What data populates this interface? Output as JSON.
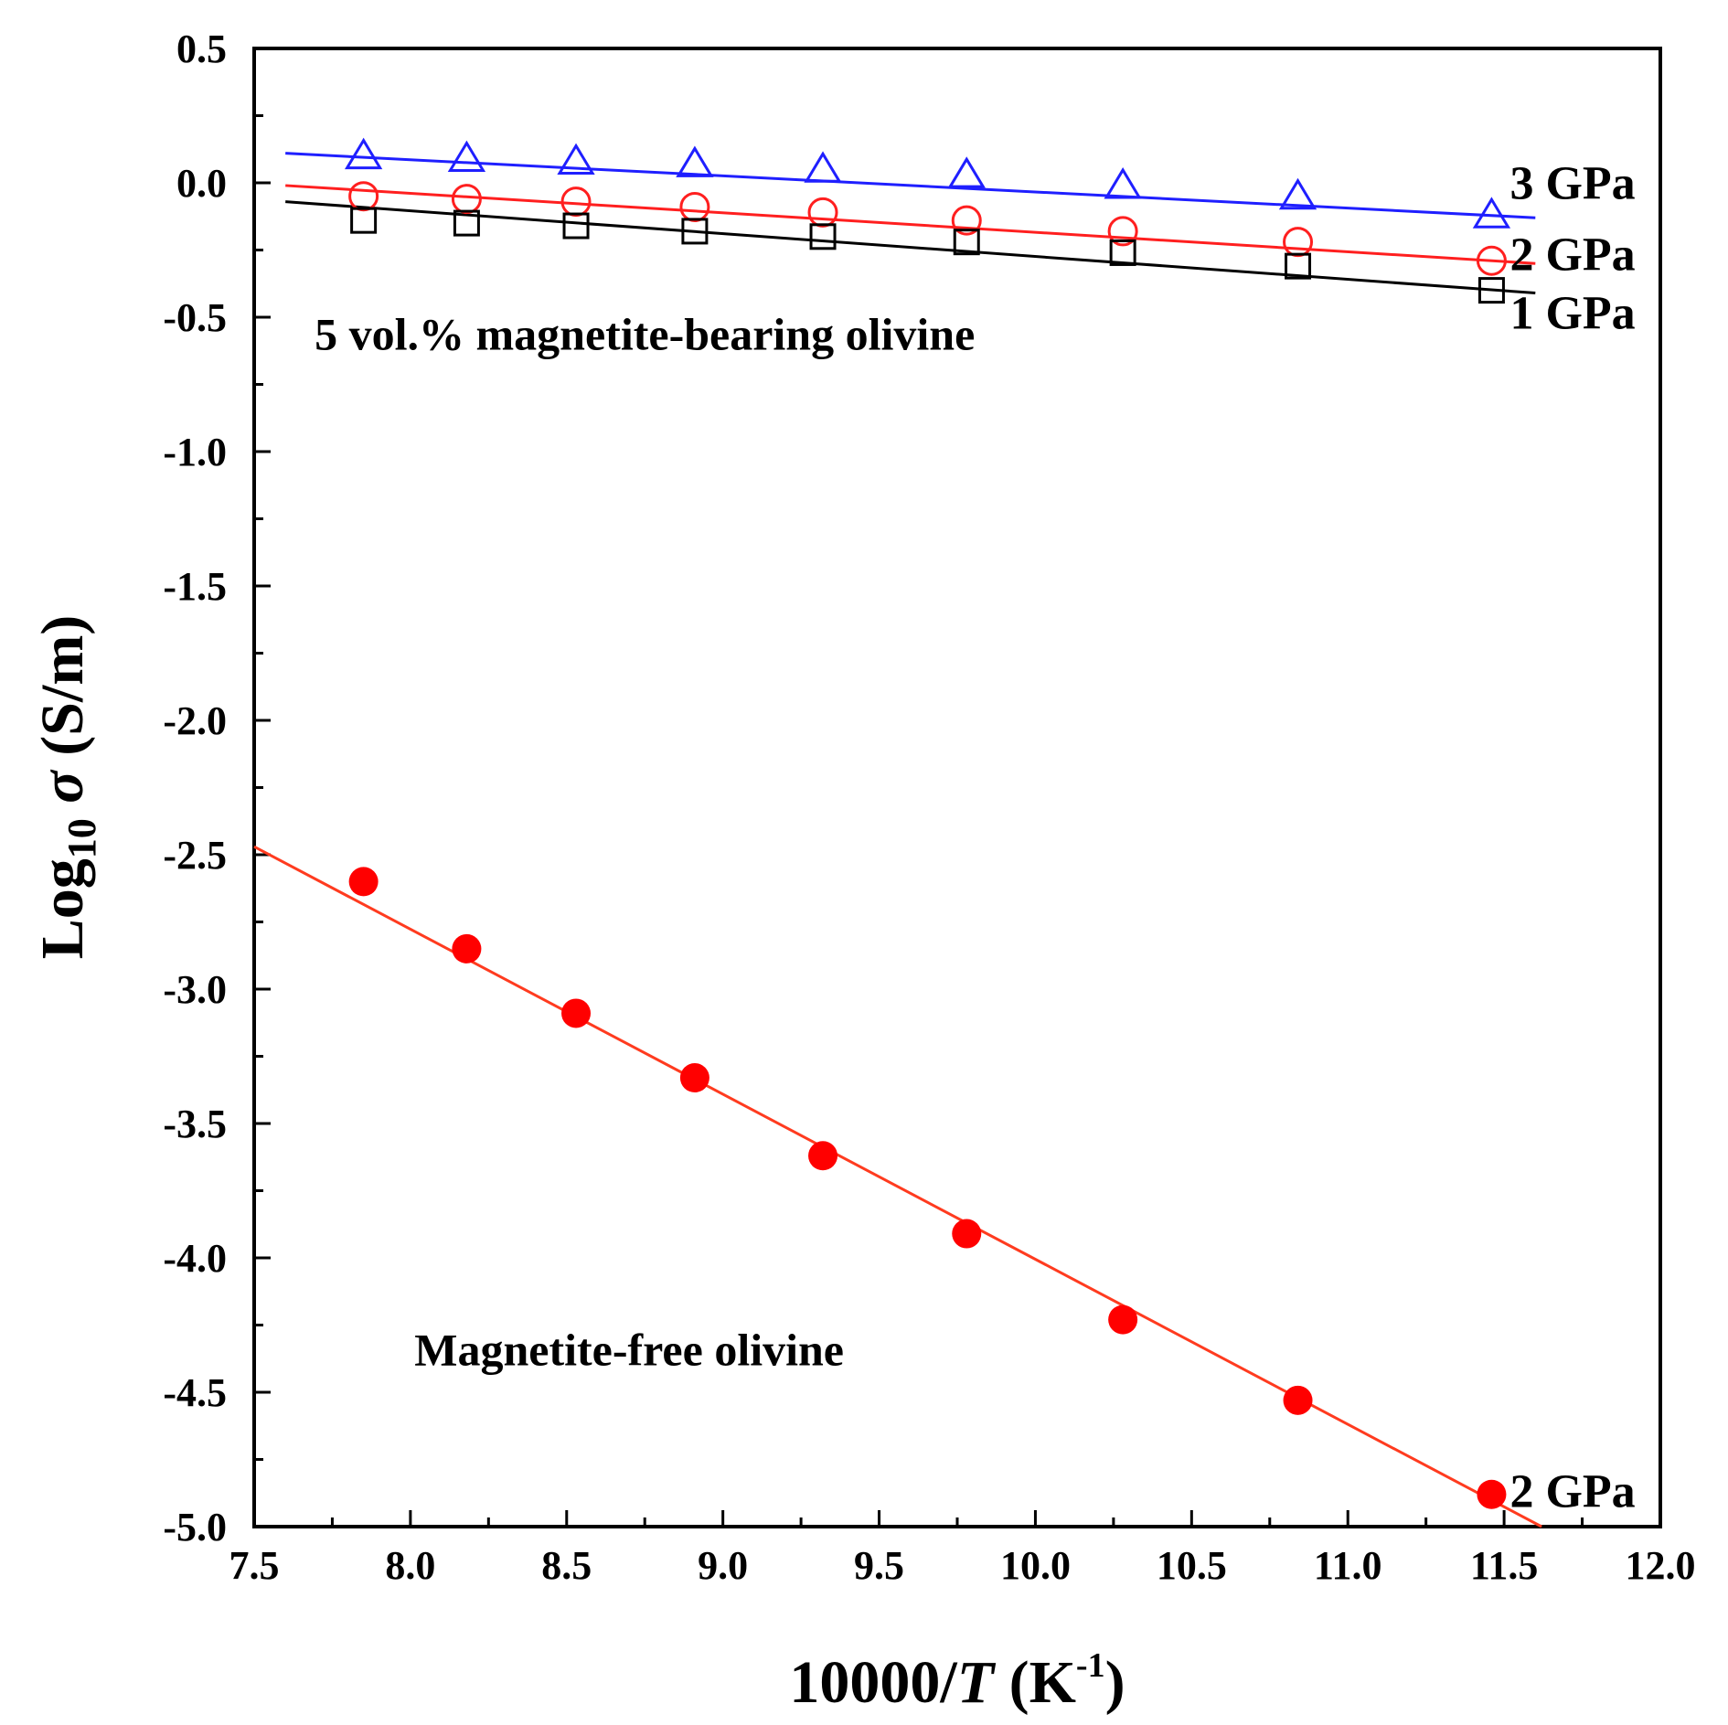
{
  "chart_data": {
    "type": "scatter",
    "title": "",
    "xlabel": {
      "prefix": "10000/",
      "var": "T",
      "unit_open": " (K",
      "unit_sup": "-1",
      "unit_close": ")"
    },
    "ylabel": {
      "prefix": "Log",
      "sub": "10",
      "var": " σ",
      "unit": " (S/m)"
    },
    "xlim": [
      7.5,
      12.0
    ],
    "ylim": [
      -5.0,
      0.5
    ],
    "xticks": [
      "7.5",
      "8.0",
      "8.5",
      "9.0",
      "9.5",
      "10.0",
      "10.5",
      "11.0",
      "11.5",
      "12.0"
    ],
    "yticks": [
      "0.5",
      "0.0",
      "-0.5",
      "-1.0",
      "-1.5",
      "-2.0",
      "-2.5",
      "-3.0",
      "-3.5",
      "-4.0",
      "-4.5",
      "-5.0"
    ],
    "grid": false,
    "legend": "none",
    "annotations": [
      {
        "text": "5 vol.% magnetite-bearing olivine",
        "x": 8.75,
        "y": -0.62
      },
      {
        "text": "Magnetite-free olivine",
        "x": 8.7,
        "y": -4.4
      }
    ],
    "series": [
      {
        "label": "3 GPa",
        "marker": "triangle-open",
        "color": "#1f1fff",
        "x": [
          7.85,
          8.18,
          8.53,
          8.91,
          9.32,
          9.78,
          10.28,
          10.84,
          11.46
        ],
        "y": [
          0.1,
          0.09,
          0.08,
          0.07,
          0.05,
          0.03,
          -0.01,
          -0.05,
          -0.12
        ],
        "fit": [
          [
            7.6,
            0.11
          ],
          [
            11.6,
            -0.13
          ]
        ]
      },
      {
        "label": "2 GPa",
        "marker": "circle-open",
        "color": "#ff1f1f",
        "x": [
          7.85,
          8.18,
          8.53,
          8.91,
          9.32,
          9.78,
          10.28,
          10.84,
          11.46
        ],
        "y": [
          -0.05,
          -0.06,
          -0.07,
          -0.09,
          -0.11,
          -0.14,
          -0.18,
          -0.22,
          -0.29
        ],
        "fit": [
          [
            7.6,
            -0.01
          ],
          [
            11.6,
            -0.3
          ]
        ]
      },
      {
        "label": "1 GPa",
        "marker": "square-open",
        "color": "#000000",
        "x": [
          7.85,
          8.18,
          8.53,
          8.91,
          9.32,
          9.78,
          10.28,
          10.84,
          11.46
        ],
        "y": [
          -0.14,
          -0.15,
          -0.16,
          -0.18,
          -0.2,
          -0.22,
          -0.26,
          -0.31,
          -0.4
        ],
        "fit": [
          [
            7.6,
            -0.07
          ],
          [
            11.6,
            -0.41
          ]
        ]
      },
      {
        "label": "2 GPa",
        "marker": "circle-filled",
        "color": "#ff0000",
        "fit_color": "#ff3b1f",
        "x": [
          7.85,
          8.18,
          8.53,
          8.91,
          9.32,
          9.78,
          10.28,
          10.84,
          11.46
        ],
        "y": [
          -2.6,
          -2.85,
          -3.09,
          -3.33,
          -3.62,
          -3.91,
          -4.23,
          -4.53,
          -4.88
        ],
        "fit": [
          [
            7.5,
            -2.47
          ],
          [
            11.62,
            -5.0
          ]
        ]
      }
    ]
  }
}
